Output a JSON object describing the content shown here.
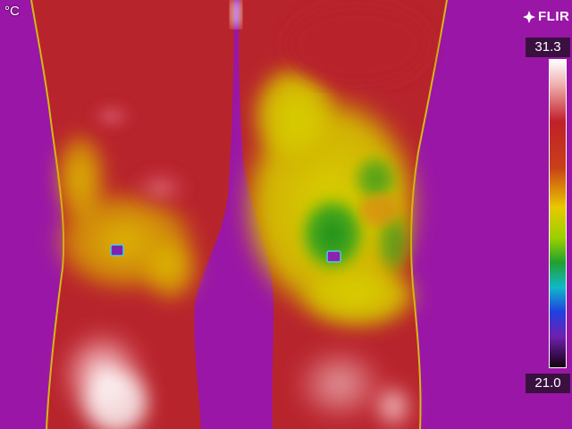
{
  "unit": "°C",
  "logo_text": "FLIR",
  "temperature_scale": {
    "max": "31.3",
    "min": "21.0",
    "palette": [
      "#ffffff",
      "#f4c8c8",
      "#c0202a",
      "#a02020",
      "#e05010",
      "#f0d000",
      "#b0e000",
      "#20a020",
      "#10b0d0",
      "#2040e0",
      "#6020b0",
      "#200010"
    ]
  },
  "colors": {
    "background": "#9a16a6",
    "hot": "#c0252c",
    "warm": "#d8c000",
    "cool": "#2a9a20"
  }
}
